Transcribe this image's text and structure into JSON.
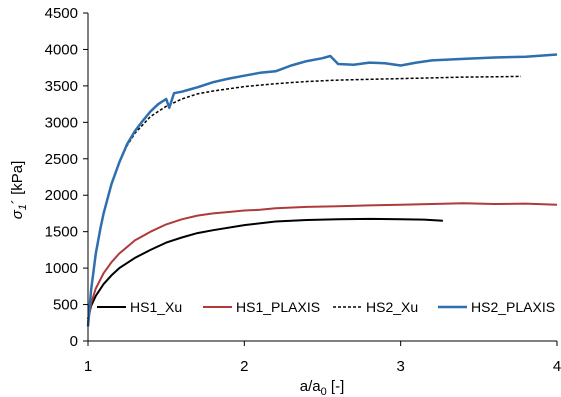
{
  "chart_data": {
    "type": "line",
    "xlabel": "a/a",
    "xlabel_sub": "0",
    "xlabel_suffix": " [-]",
    "ylabel": "σ",
    "ylabel_sub": "1",
    "ylabel_suffix": "´ [kPa]",
    "xlim": [
      1,
      4
    ],
    "ylim": [
      0,
      4500
    ],
    "xticks": [
      1,
      2,
      3,
      4
    ],
    "yticks": [
      0,
      500,
      1000,
      1500,
      2000,
      2500,
      3000,
      3500,
      4000,
      4500
    ],
    "grid": false,
    "legend_position": "bottom",
    "colors": {
      "hs1_xu": "#000000",
      "hs1_plaxis": "#b03a3a",
      "hs2_xu": "#000000",
      "hs2_plaxis": "#2e6fad"
    },
    "series": [
      {
        "name": "HS1_Xu",
        "style": "solid",
        "x": [
          1.0,
          1.02,
          1.05,
          1.1,
          1.15,
          1.2,
          1.3,
          1.4,
          1.5,
          1.6,
          1.7,
          1.8,
          2.0,
          2.2,
          2.4,
          2.6,
          2.8,
          3.0,
          3.15,
          3.27
        ],
        "y": [
          300,
          480,
          620,
          780,
          900,
          1000,
          1140,
          1250,
          1350,
          1420,
          1480,
          1520,
          1590,
          1640,
          1660,
          1670,
          1675,
          1670,
          1665,
          1650
        ]
      },
      {
        "name": "HS1_PLAXIS",
        "style": "solid",
        "x": [
          1.0,
          1.02,
          1.05,
          1.1,
          1.15,
          1.2,
          1.3,
          1.4,
          1.5,
          1.6,
          1.7,
          1.8,
          1.9,
          2.0,
          2.1,
          2.2,
          2.4,
          2.6,
          2.8,
          3.0,
          3.2,
          3.4,
          3.6,
          3.8,
          4.0
        ],
        "y": [
          250,
          520,
          720,
          930,
          1080,
          1200,
          1380,
          1500,
          1600,
          1670,
          1720,
          1750,
          1770,
          1790,
          1800,
          1820,
          1840,
          1850,
          1860,
          1870,
          1880,
          1890,
          1880,
          1885,
          1870
        ]
      },
      {
        "name": "HS2_Xu",
        "style": "dashed",
        "x": [
          1.0,
          1.02,
          1.05,
          1.08,
          1.1,
          1.15,
          1.2,
          1.25,
          1.3,
          1.4,
          1.5,
          1.6,
          1.7,
          1.8,
          2.0,
          2.2,
          2.4,
          2.6,
          2.8,
          3.0,
          3.2,
          3.4,
          3.6,
          3.77
        ],
        "y": [
          200,
          700,
          1200,
          1550,
          1750,
          2150,
          2450,
          2680,
          2850,
          3080,
          3220,
          3320,
          3390,
          3430,
          3490,
          3530,
          3560,
          3580,
          3590,
          3600,
          3610,
          3620,
          3625,
          3630
        ]
      },
      {
        "name": "HS2_PLAXIS",
        "style": "solid",
        "x": [
          1.0,
          1.02,
          1.05,
          1.08,
          1.1,
          1.15,
          1.2,
          1.25,
          1.3,
          1.35,
          1.4,
          1.45,
          1.5,
          1.52,
          1.55,
          1.6,
          1.65,
          1.7,
          1.8,
          1.9,
          2.0,
          2.1,
          2.2,
          2.3,
          2.4,
          2.5,
          2.55,
          2.6,
          2.7,
          2.8,
          2.9,
          3.0,
          3.1,
          3.2,
          3.4,
          3.6,
          3.8,
          4.0
        ],
        "y": [
          200,
          700,
          1200,
          1550,
          1750,
          2150,
          2450,
          2700,
          2880,
          3020,
          3150,
          3250,
          3320,
          3200,
          3400,
          3420,
          3450,
          3480,
          3550,
          3600,
          3640,
          3680,
          3700,
          3780,
          3840,
          3880,
          3910,
          3800,
          3790,
          3820,
          3810,
          3780,
          3820,
          3850,
          3870,
          3890,
          3900,
          3930
        ]
      }
    ]
  }
}
